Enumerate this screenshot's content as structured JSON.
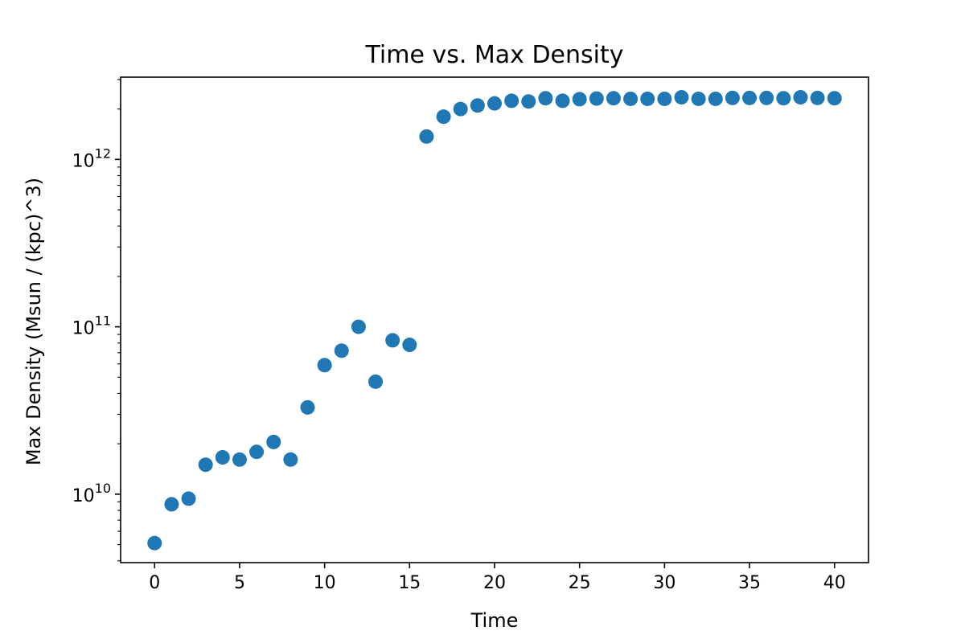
{
  "chart_data": {
    "type": "scatter",
    "title": "Time vs. Max Density",
    "xlabel": "Time",
    "ylabel": "Max Density (Msun / (kpc)^3)",
    "yscale": "log",
    "xlim": [
      -2,
      42
    ],
    "ylim": [
      3900000000.0,
      3100000000000.0
    ],
    "grid": false,
    "marker_color": "#1f77b4",
    "x_ticks": [
      0,
      5,
      10,
      15,
      20,
      25,
      30,
      35,
      40
    ],
    "x_tick_labels": [
      "0",
      "5",
      "10",
      "15",
      "20",
      "25",
      "30",
      "35",
      "40"
    ],
    "y_major_ticks": [
      {
        "value": 10000000000.0,
        "base": "10",
        "exp": "10"
      },
      {
        "value": 100000000000.0,
        "base": "10",
        "exp": "11"
      },
      {
        "value": 1000000000000.0,
        "base": "10",
        "exp": "12"
      }
    ],
    "x": [
      0,
      1,
      2,
      3,
      4,
      5,
      6,
      7,
      8,
      9,
      10,
      11,
      12,
      13,
      14,
      15,
      16,
      17,
      18,
      19,
      20,
      21,
      22,
      23,
      24,
      25,
      26,
      27,
      28,
      29,
      30,
      31,
      32,
      33,
      34,
      35,
      36,
      37,
      38,
      39,
      40
    ],
    "y": [
      5100000000.0,
      8700000000.0,
      9400000000.0,
      15000000000.0,
      16600000000.0,
      16100000000.0,
      17900000000.0,
      20500000000.0,
      16100000000.0,
      33000000000.0,
      59000000000.0,
      72000000000.0,
      100000000000.0,
      47000000000.0,
      83000000000.0,
      78000000000.0,
      1370000000000.0,
      1800000000000.0,
      2000000000000.0,
      2100000000000.0,
      2160000000000.0,
      2240000000000.0,
      2220000000000.0,
      2320000000000.0,
      2240000000000.0,
      2290000000000.0,
      2310000000000.0,
      2320000000000.0,
      2300000000000.0,
      2300000000000.0,
      2300000000000.0,
      2350000000000.0,
      2300000000000.0,
      2300000000000.0,
      2330000000000.0,
      2330000000000.0,
      2330000000000.0,
      2320000000000.0,
      2350000000000.0,
      2330000000000.0,
      2320000000000.0
    ]
  }
}
